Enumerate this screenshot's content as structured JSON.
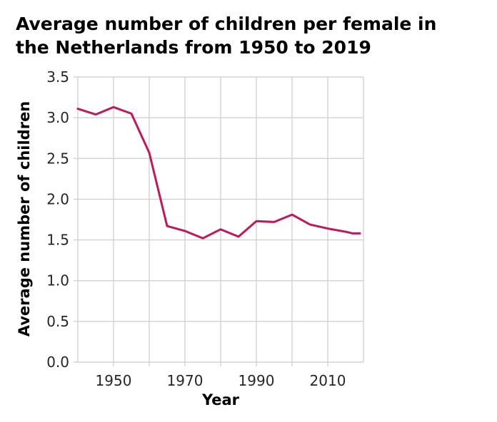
{
  "chart_data": {
    "type": "line",
    "title_lines": [
      "Average number of children per female in",
      "the Netherlands from 1950 to 2019"
    ],
    "xlabel": "Year",
    "ylabel": "Average number of children",
    "xlim": [
      1940,
      2020
    ],
    "ylim": [
      0,
      3.5
    ],
    "x_tick_values": [
      1950,
      1960,
      1970,
      1980,
      1990,
      2000,
      2010
    ],
    "x_tick_labels": [
      "1950",
      "",
      "1970",
      "",
      "1990",
      "",
      "2010"
    ],
    "y_tick_values": [
      0,
      0.5,
      1.0,
      1.5,
      2.0,
      2.5,
      3.0,
      3.5
    ],
    "y_tick_labels": [
      "0.0",
      "0.5",
      "1.0",
      "1.5",
      "2.0",
      "2.5",
      "3.0",
      "3.5"
    ],
    "grid": true,
    "line_color": "#c0185a",
    "series": [
      {
        "x": [
          1940,
          1945,
          1950,
          1955,
          1960,
          1965,
          1970,
          1975,
          1980,
          1985,
          1990,
          1995,
          2000,
          2005,
          2010,
          2015,
          2017,
          2019
        ],
        "values": [
          3.11,
          3.04,
          3.13,
          3.05,
          2.57,
          1.67,
          1.61,
          1.52,
          1.63,
          1.54,
          1.73,
          1.72,
          1.81,
          1.69,
          1.64,
          1.6,
          1.58,
          1.58
        ]
      }
    ]
  }
}
